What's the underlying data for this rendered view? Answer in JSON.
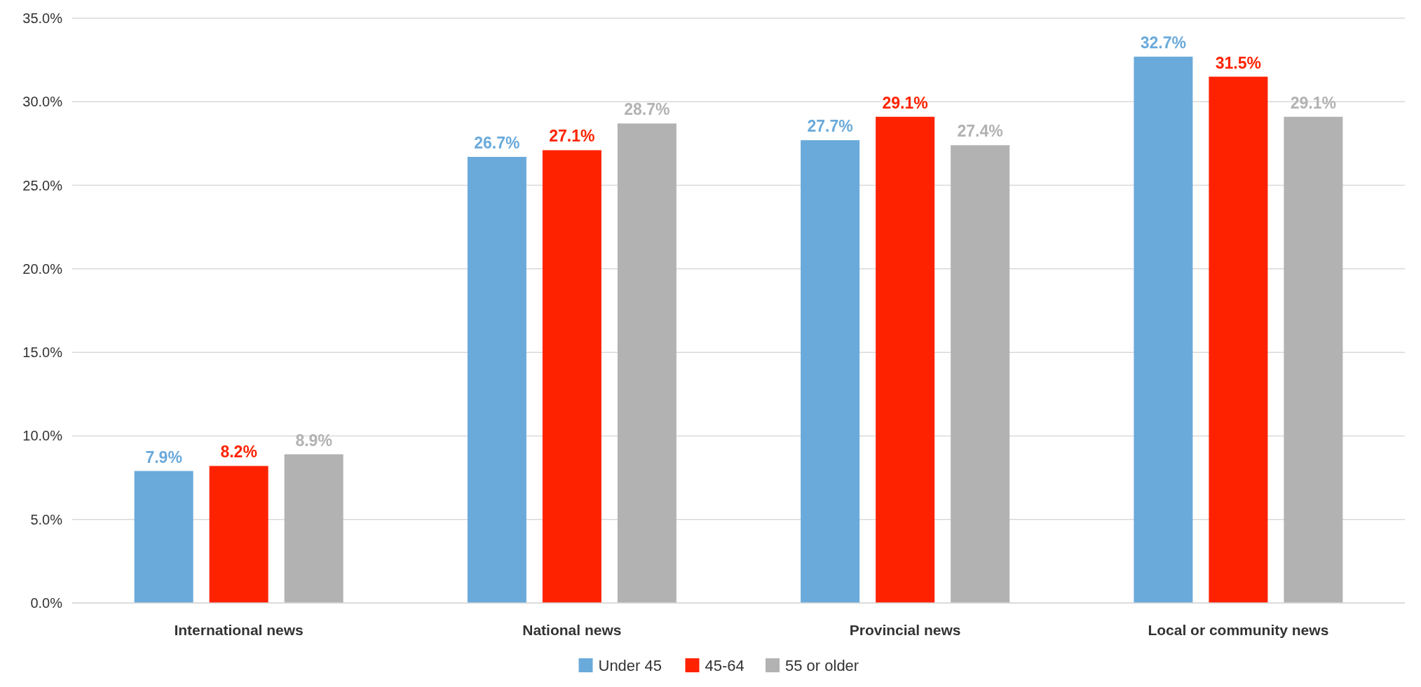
{
  "chart_data": {
    "type": "bar",
    "categories": [
      "International news",
      "National news",
      "Provincial news",
      "Local or community news"
    ],
    "series": [
      {
        "name": "Under 45",
        "color": "#6aaadb",
        "values": [
          7.9,
          26.7,
          27.7,
          32.7
        ],
        "value_labels": [
          "7.9%",
          "26.7%",
          "27.7%",
          "32.7%"
        ]
      },
      {
        "name": "45-64",
        "color": "#ff2200",
        "values": [
          8.2,
          27.1,
          29.1,
          31.5
        ],
        "value_labels": [
          "8.2%",
          "27.1%",
          "29.1%",
          "31.5%"
        ]
      },
      {
        "name": "55 or older",
        "color": "#b2b2b2",
        "values": [
          8.9,
          28.7,
          27.4,
          29.1
        ],
        "value_labels": [
          "8.9%",
          "28.7%",
          "27.4%",
          "29.1%"
        ]
      }
    ],
    "ylim": [
      0,
      35
    ],
    "yticks": [
      {
        "value": 0,
        "label": "0.0%"
      },
      {
        "value": 5,
        "label": "5.0%"
      },
      {
        "value": 10,
        "label": "10.0%"
      },
      {
        "value": 15,
        "label": "15.0%"
      },
      {
        "value": 20,
        "label": "20.0%"
      },
      {
        "value": 25,
        "label": "25.0%"
      },
      {
        "value": 30,
        "label": "30.0%"
      },
      {
        "value": 35,
        "label": "35.0%"
      }
    ],
    "grid": "y",
    "legend": "bottom"
  }
}
